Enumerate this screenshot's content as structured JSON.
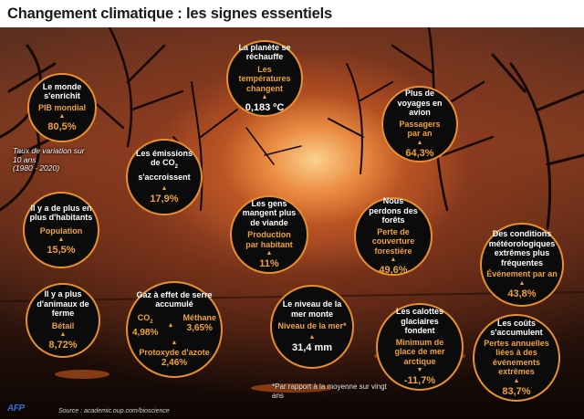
{
  "header": {
    "title": "Changement climatique : les signes essentiels"
  },
  "bubbles": {
    "monde": {
      "title": "Le monde s'enrichit",
      "sub": "PIB mondial",
      "value": "80,5%"
    },
    "planete": {
      "title": "La planète se réchauffe",
      "sub": "Les températures changent",
      "value": "0,183 ºC"
    },
    "voyages": {
      "title": "Plus de voyages en avion",
      "sub": "Passagers par an",
      "value": "64,3%"
    },
    "co2": {
      "title_a": "Les émissions de CO",
      "title_sub": "2",
      "title_b": "s'accroissent",
      "value": "17,9%"
    },
    "habitants": {
      "title": "Il y a de plus en plus d'habitants",
      "sub": "Population",
      "value": "15,5%"
    },
    "viande": {
      "title": "Les gens mangent plus de viande",
      "sub": "Production par habitant",
      "value": "11%"
    },
    "forets": {
      "title": "Nous perdons des forêts",
      "sub": "Perte de couverture forestière",
      "value": "49,6%"
    },
    "meteo": {
      "title": "Des conditions météorologiques extrêmes plus fréquentes",
      "sub": "Événement par an",
      "value": "43,8%"
    },
    "animaux": {
      "title": "Il y a plus d'animaux de ferme",
      "sub": "Bétail",
      "value": "8,72%"
    },
    "gaz": {
      "title": "Gaz à effet de serre accumulé",
      "co2_label_a": "CO",
      "co2_label_sub": "2",
      "co2_value": "4,98%",
      "methane_label": "Méthane",
      "methane_value": "3,65%",
      "protoxyde_label": "Protoxyde d'azote",
      "protoxyde_value": "2,46%"
    },
    "mer": {
      "title": "Le niveau de la mer monte",
      "sub": "Niveau de la mer*",
      "value": "31,4 mm"
    },
    "calottes": {
      "title": "Les calottes glaciaires fondent",
      "sub": "Minimum de glace de mer arctique",
      "value": "-11,7%"
    },
    "couts": {
      "title": "Les coûts s'accumulent",
      "sub": "Pertes annuelles liées à des événements extrêmes",
      "value": "83,7%"
    }
  },
  "notes": {
    "taux": "Taux de variation sur 10 ans",
    "periode": "(1980 - 2020)",
    "footnote": "*Par rapport à la moyenne sur vingt ans",
    "source": "Source : academic.oup.com/bioscience",
    "agency": "AFP"
  },
  "colors": {
    "accent": "#f0a23a",
    "border": "#e8902e",
    "bubble": "#0b0b0b"
  }
}
